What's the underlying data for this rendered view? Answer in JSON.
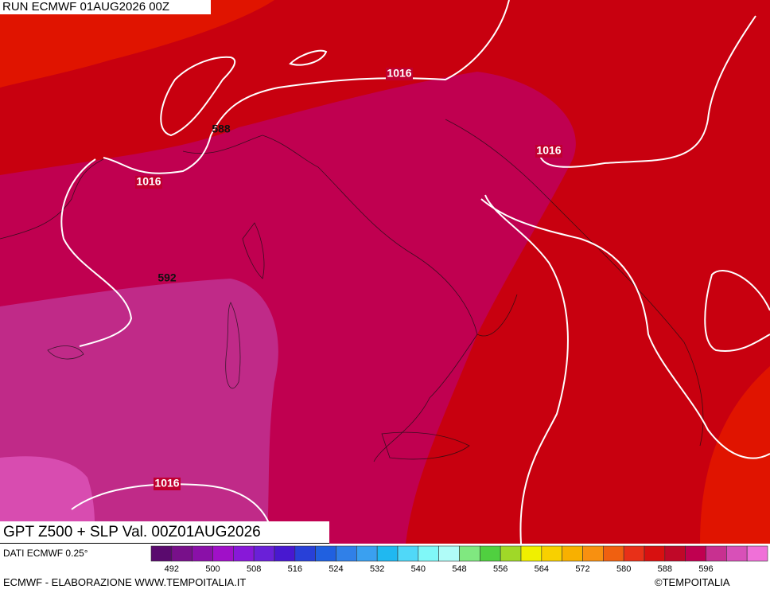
{
  "header": {
    "run": "RUN ECMWF 01AUG2026 00Z"
  },
  "caption": "GPT Z500 + SLP Val. 00Z01AUG2026",
  "source": "DATI ECMWF 0.25°",
  "map": {
    "labels": [
      {
        "text": "1016",
        "style": "slp"
      },
      {
        "text": "1016",
        "style": "slp"
      },
      {
        "text": "1016",
        "style": "slp"
      },
      {
        "text": "1016",
        "style": "slp"
      },
      {
        "text": "588",
        "style": "gpt"
      },
      {
        "text": "592",
        "style": "gpt"
      }
    ]
  },
  "colorbar": {
    "colors": [
      "#5a0a6e",
      "#78108a",
      "#8a10a8",
      "#a010c8",
      "#8818d8",
      "#6a20d8",
      "#4818d0",
      "#2840d8",
      "#2060e0",
      "#3080e8",
      "#3aa0f0",
      "#20b8f0",
      "#50d8f8",
      "#80f8f8",
      "#b0fcf8",
      "#80e880",
      "#50d040",
      "#a0d828",
      "#f0f000",
      "#f8d000",
      "#f8b000",
      "#f89010",
      "#f06010",
      "#e83018",
      "#d81010",
      "#c00828",
      "#c00050",
      "#c83090",
      "#d850b8",
      "#f070d8"
    ],
    "labels": [
      492,
      500,
      508,
      516,
      524,
      532,
      540,
      548,
      556,
      564,
      572,
      580,
      588,
      596
    ]
  },
  "footer": {
    "left": "ECMWF - ELABORAZIONE WWW.TEMPOITALIA.IT",
    "right": "©TEMPOITALIA"
  }
}
